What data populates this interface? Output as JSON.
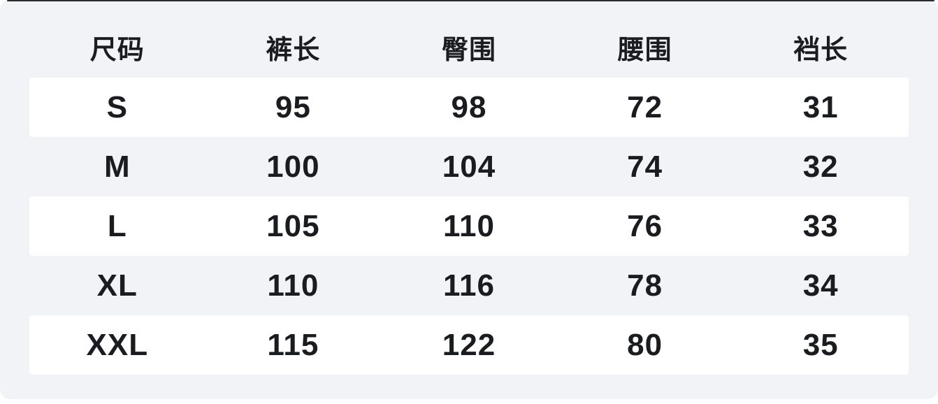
{
  "page": {
    "background": "#ffffff",
    "card_background": "#f2f3f7",
    "row_background": "#ffffff",
    "text_color": "#1b1c20",
    "top_line_color": "#2c2c31"
  },
  "chart_data": {
    "type": "table",
    "columns": [
      "尺码",
      "裤长",
      "臀围",
      "腰围",
      "裆长"
    ],
    "rows": [
      {
        "size": "S",
        "values": [
          "95",
          "98",
          "72",
          "31"
        ]
      },
      {
        "size": "M",
        "values": [
          "100",
          "104",
          "74",
          "32"
        ]
      },
      {
        "size": "L",
        "values": [
          "105",
          "110",
          "76",
          "33"
        ]
      },
      {
        "size": "XL",
        "values": [
          "110",
          "116",
          "78",
          "34"
        ]
      },
      {
        "size": "XXL",
        "values": [
          "115",
          "122",
          "80",
          "35"
        ]
      }
    ],
    "layout": {
      "striped_rows": "odd rows white on gray card",
      "alignment": "center"
    }
  }
}
